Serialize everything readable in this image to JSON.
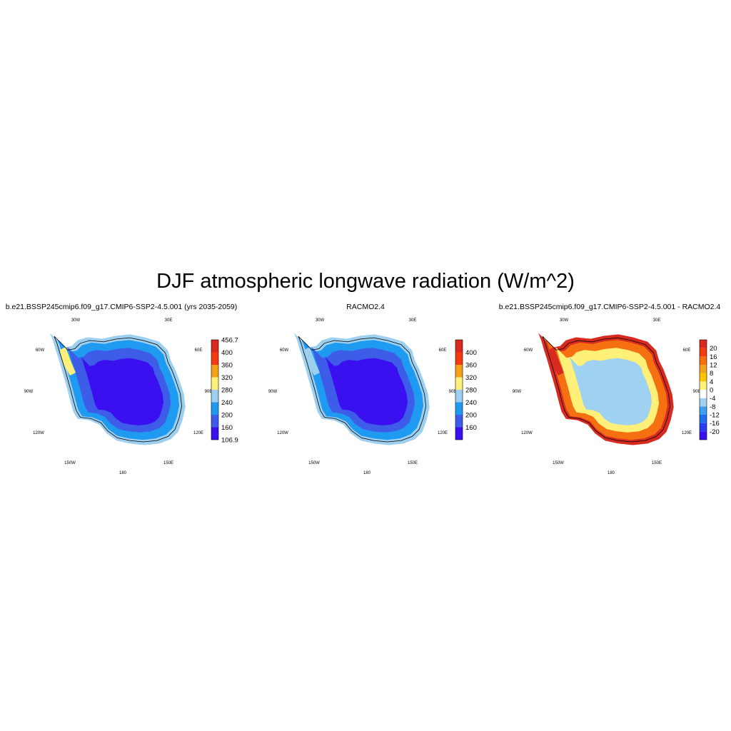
{
  "figure": {
    "title": "DJF atmospheric longwave radiation (W/m^2)"
  },
  "panels": [
    {
      "title": "b.e21.BSSP245cmip6.f09_g17.CMIP6-SSP2-4.5.001 (yrs 2035-2059)",
      "colorbar": {
        "colors": [
          "#3a10f0",
          "#3d5ce8",
          "#1e9bf0",
          "#9ccff0",
          "#fff07a",
          "#f3a21a",
          "#f53a10",
          "#d92a20"
        ],
        "labels": [
          "106.9",
          "160",
          "200",
          "240",
          "280",
          "320",
          "360",
          "400",
          "456.7"
        ]
      },
      "field": {
        "interior": "#3a10f0",
        "mid": "#3d5ce8",
        "coast": "#1e9bf0",
        "edge": "#9ccff0",
        "peninsula": "#fff07a"
      }
    },
    {
      "title": "RACMO2.4",
      "colorbar": {
        "colors": [
          "#3a10f0",
          "#3d5ce8",
          "#1e9bf0",
          "#9ccff0",
          "#fff07a",
          "#f3a21a",
          "#f53a10",
          "#d92a20"
        ],
        "labels": [
          "160",
          "200",
          "240",
          "280",
          "320",
          "360",
          "400"
        ]
      },
      "field": {
        "interior": "#3a10f0",
        "mid": "#3d5ce8",
        "coast": "#1e9bf0",
        "edge": "#9ccff0",
        "peninsula": "#9ccff0"
      }
    },
    {
      "title": "b.e21.BSSP245cmip6.f09_g17.CMIP6-SSP2-4.5.001 - RACMO2.4",
      "colorbar": {
        "colors": [
          "#3a10f0",
          "#2a3cf0",
          "#1e6ef0",
          "#3ca0f0",
          "#9fd2f0",
          "#ffffff",
          "#fff07a",
          "#ffc400",
          "#f3a21a",
          "#f57010",
          "#f53a10",
          "#d92a20"
        ],
        "labels": [
          "-20",
          "-16",
          "-12",
          "-8",
          "-4",
          "0",
          "4",
          "8",
          "12",
          "16",
          "20"
        ]
      },
      "field": {
        "interior": "#9fd2f0",
        "mid": "#fff07a",
        "coast": "#f57010",
        "edge": "#d92a20",
        "peninsula": "#d92a20"
      }
    }
  ],
  "map_labels": {
    "lon_30w": "30W",
    "lon_30e": "30E",
    "lon_60w": "60W",
    "lon_60e": "60E",
    "lon_90w": "90W",
    "lon_90e": "90E",
    "lon_120w": "120W",
    "lon_120e": "120E",
    "lon_150w": "150W",
    "lon_150e": "150E",
    "lon_180": "180"
  }
}
